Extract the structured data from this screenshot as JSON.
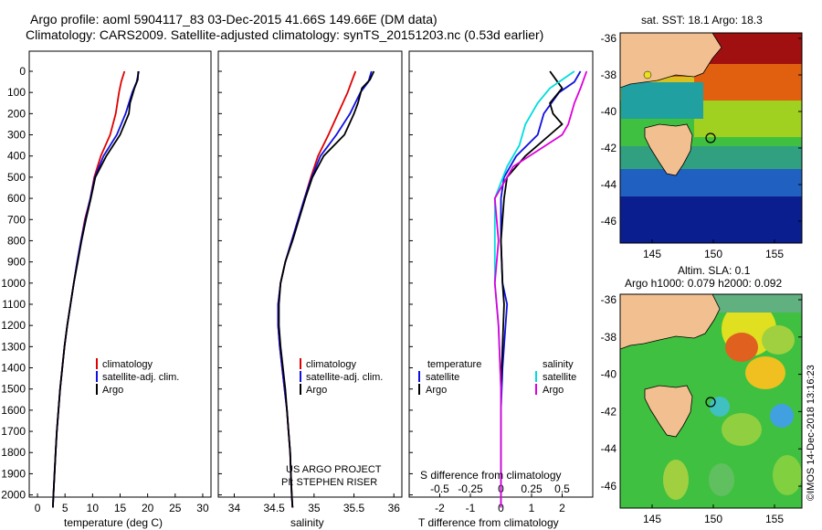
{
  "header": {
    "line1": "Argo profile: aoml 5904117_83 03-Dec-2015 41.66S 149.66E (DM data)",
    "line2": "Climatology: CARS2009. Satellite-adjusted climatology: synTS_20151203.nc (0.53d earlier)"
  },
  "colors": {
    "climatology": "#e00000",
    "satellite": "#1010e0",
    "argo": "#000000",
    "sat_s": "#00dddd",
    "argo_s": "#dd00dd"
  },
  "depth_ticks": [
    "0",
    "100",
    "200",
    "300",
    "400",
    "500",
    "600",
    "700",
    "800",
    "900",
    "1000",
    "1100",
    "1200",
    "1300",
    "1400",
    "1500",
    "1600",
    "1700",
    "1800",
    "1900",
    "2000"
  ],
  "temp_ticks": [
    "0",
    "5",
    "10",
    "15",
    "20",
    "25",
    "30"
  ],
  "sal_ticks": [
    "34",
    "34.5",
    "35",
    "35.5",
    "36"
  ],
  "tdiff_ticks": [
    "-2",
    "-1",
    "0",
    "1",
    "2"
  ],
  "sdiff_ticks": [
    "-0.5",
    "-0.25",
    "0",
    "0.25",
    "0.5"
  ],
  "legend1": {
    "climatology": "climatology",
    "satellite": "satellite-adj. clim.",
    "argo": "Argo"
  },
  "legend3": {
    "t_head": "temperature",
    "s_head": "salinity",
    "satellite": "satellite",
    "argo": "Argo"
  },
  "xlabels": {
    "temp": "temperature (deg C)",
    "sal": "salinity",
    "tdiff": "T difference from climatology",
    "sdiff": "S difference from climatology"
  },
  "credit": {
    "line1": "US ARGO PROJECT",
    "line2": "PI: STEPHEN RISER"
  },
  "maps": {
    "sst_title": "sat. SST: 18.1 Argo: 18.3",
    "sla_title1": "Altim. SLA: 0.1",
    "sla_title2": "Argo h1000: 0.079 h2000: 0.092",
    "lat_ticks": [
      "-36",
      "-38",
      "-40",
      "-42",
      "-44",
      "-46"
    ],
    "lon_ticks": [
      "145",
      "150",
      "155"
    ],
    "stamp": "©IMOS 14-Dec-2018 13:16:23"
  },
  "chart_data": [
    {
      "type": "line",
      "title": "",
      "xlabel": "temperature (deg C)",
      "ylabel": "depth",
      "xlim": [
        -1.5,
        31.5
      ],
      "ylim": [
        2080,
        0
      ],
      "series": [
        {
          "name": "climatology",
          "points": [
            [
              15.8,
              0
            ],
            [
              15.2,
              50
            ],
            [
              14.8,
              100
            ],
            [
              14.2,
              200
            ],
            [
              13.2,
              300
            ],
            [
              11.5,
              400
            ],
            [
              10.3,
              500
            ],
            [
              9.6,
              600
            ],
            [
              8.6,
              700
            ],
            [
              7.9,
              800
            ],
            [
              7.2,
              900
            ],
            [
              6.6,
              1000
            ],
            [
              6.0,
              1100
            ],
            [
              5.4,
              1200
            ],
            [
              4.9,
              1300
            ],
            [
              4.5,
              1400
            ],
            [
              4.1,
              1500
            ],
            [
              3.8,
              1600
            ],
            [
              3.5,
              1700
            ],
            [
              3.3,
              1800
            ],
            [
              3.1,
              1900
            ],
            [
              2.9,
              2000
            ],
            [
              2.8,
              2060
            ]
          ]
        },
        {
          "name": "satellite-adj. clim.",
          "points": [
            [
              18.4,
              0
            ],
            [
              18.0,
              50
            ],
            [
              17.2,
              100
            ],
            [
              16.0,
              200
            ],
            [
              14.4,
              300
            ],
            [
              12.0,
              400
            ],
            [
              10.4,
              500
            ],
            [
              9.6,
              600
            ],
            [
              8.7,
              700
            ],
            [
              7.9,
              800
            ],
            [
              7.2,
              900
            ],
            [
              6.6,
              1000
            ],
            [
              6.0,
              1100
            ],
            [
              5.4,
              1200
            ],
            [
              4.9,
              1300
            ],
            [
              4.5,
              1400
            ],
            [
              4.1,
              1500
            ],
            [
              3.8,
              1600
            ],
            [
              3.5,
              1700
            ],
            [
              3.3,
              1800
            ],
            [
              3.1,
              1900
            ],
            [
              2.9,
              2000
            ],
            [
              2.8,
              2060
            ]
          ]
        },
        {
          "name": "Argo",
          "points": [
            [
              18.3,
              0
            ],
            [
              18.2,
              40
            ],
            [
              17.6,
              80
            ],
            [
              16.8,
              150
            ],
            [
              16.6,
              200
            ],
            [
              15.0,
              300
            ],
            [
              12.5,
              400
            ],
            [
              10.5,
              500
            ],
            [
              9.7,
              600
            ],
            [
              8.8,
              700
            ],
            [
              8.0,
              800
            ],
            [
              7.3,
              900
            ],
            [
              6.6,
              1000
            ],
            [
              6.0,
              1100
            ],
            [
              5.4,
              1200
            ],
            [
              4.9,
              1300
            ],
            [
              4.5,
              1400
            ],
            [
              4.1,
              1500
            ],
            [
              3.8,
              1600
            ],
            [
              3.5,
              1700
            ],
            [
              3.3,
              1800
            ],
            [
              3.1,
              1900
            ],
            [
              2.9,
              2000
            ],
            [
              2.8,
              2060
            ]
          ]
        }
      ]
    },
    {
      "type": "line",
      "title": "",
      "xlabel": "salinity",
      "ylabel": "depth",
      "xlim": [
        33.8,
        36.1
      ],
      "ylim": [
        2080,
        0
      ],
      "series": [
        {
          "name": "climatology",
          "points": [
            [
              35.52,
              0
            ],
            [
              35.47,
              50
            ],
            [
              35.42,
              100
            ],
            [
              35.3,
              200
            ],
            [
              35.18,
              300
            ],
            [
              35.05,
              400
            ],
            [
              34.96,
              500
            ],
            [
              34.88,
              600
            ],
            [
              34.8,
              700
            ],
            [
              34.72,
              800
            ],
            [
              34.64,
              900
            ],
            [
              34.58,
              1000
            ],
            [
              34.55,
              1100
            ],
            [
              34.55,
              1200
            ],
            [
              34.57,
              1300
            ],
            [
              34.6,
              1400
            ],
            [
              34.63,
              1500
            ],
            [
              34.66,
              1600
            ],
            [
              34.68,
              1700
            ],
            [
              34.7,
              1800
            ],
            [
              34.71,
              1900
            ],
            [
              34.72,
              2000
            ],
            [
              34.73,
              2060
            ]
          ]
        },
        {
          "name": "satellite-adj. clim.",
          "points": [
            [
              35.72,
              0
            ],
            [
              35.68,
              50
            ],
            [
              35.58,
              100
            ],
            [
              35.45,
              200
            ],
            [
              35.28,
              300
            ],
            [
              35.08,
              400
            ],
            [
              34.97,
              500
            ],
            [
              34.88,
              600
            ],
            [
              34.8,
              700
            ],
            [
              34.72,
              800
            ],
            [
              34.64,
              900
            ],
            [
              34.58,
              1000
            ],
            [
              34.55,
              1100
            ],
            [
              34.55,
              1200
            ],
            [
              34.57,
              1300
            ],
            [
              34.6,
              1400
            ],
            [
              34.63,
              1500
            ],
            [
              34.66,
              1600
            ],
            [
              34.68,
              1700
            ],
            [
              34.7,
              1800
            ],
            [
              34.71,
              1900
            ],
            [
              34.72,
              2000
            ],
            [
              34.73,
              2060
            ]
          ]
        },
        {
          "name": "Argo",
          "points": [
            [
              35.75,
              0
            ],
            [
              35.7,
              40
            ],
            [
              35.6,
              80
            ],
            [
              35.55,
              150
            ],
            [
              35.5,
              200
            ],
            [
              35.38,
              300
            ],
            [
              35.12,
              400
            ],
            [
              34.98,
              500
            ],
            [
              34.89,
              600
            ],
            [
              34.81,
              700
            ],
            [
              34.73,
              800
            ],
            [
              34.64,
              900
            ],
            [
              34.58,
              1000
            ],
            [
              34.56,
              1100
            ],
            [
              34.56,
              1200
            ],
            [
              34.58,
              1300
            ],
            [
              34.61,
              1400
            ],
            [
              34.64,
              1500
            ],
            [
              34.66,
              1600
            ],
            [
              34.68,
              1700
            ],
            [
              34.7,
              1800
            ],
            [
              34.71,
              1900
            ],
            [
              34.72,
              2000
            ],
            [
              34.73,
              2060
            ]
          ]
        }
      ]
    },
    {
      "type": "line",
      "title": "",
      "xlabel": "T difference from climatology",
      "ylabel": "depth",
      "xlim": [
        -3.0,
        3.0
      ],
      "ylim": [
        2080,
        0
      ],
      "series": [
        {
          "name": "temperature satellite",
          "points": [
            [
              2.6,
              0
            ],
            [
              2.4,
              50
            ],
            [
              1.9,
              100
            ],
            [
              1.4,
              200
            ],
            [
              1.2,
              300
            ],
            [
              0.5,
              400
            ],
            [
              0.1,
              500
            ],
            [
              0.0,
              600
            ],
            [
              0.0,
              800
            ],
            [
              0.05,
              1000
            ],
            [
              0.2,
              1100
            ],
            [
              0.15,
              1200
            ],
            [
              0.05,
              1400
            ],
            [
              0.0,
              1600
            ],
            [
              0.0,
              2060
            ]
          ]
        },
        {
          "name": "temperature Argo",
          "points": [
            [
              1.6,
              0
            ],
            [
              1.8,
              40
            ],
            [
              2.0,
              80
            ],
            [
              1.6,
              150
            ],
            [
              1.7,
              200
            ],
            [
              2.0,
              250
            ],
            [
              1.6,
              300
            ],
            [
              0.8,
              400
            ],
            [
              0.2,
              500
            ],
            [
              0.1,
              600
            ],
            [
              0.05,
              700
            ],
            [
              0.0,
              800
            ],
            [
              0.05,
              1000
            ],
            [
              0.1,
              1100
            ],
            [
              0.05,
              1300
            ],
            [
              0.0,
              1500
            ],
            [
              0.0,
              2060
            ]
          ]
        },
        {
          "name": "salinity satellite",
          "points": [
            [
              0.6,
              0
            ],
            [
              0.4,
              80
            ],
            [
              0.3,
              150
            ],
            [
              0.2,
              250
            ],
            [
              0.15,
              350
            ],
            [
              0.05,
              450
            ],
            [
              -0.05,
              600
            ],
            [
              -0.05,
              1000
            ],
            [
              -0.02,
              1200
            ],
            [
              0.0,
              1500
            ],
            [
              0.0,
              2060
            ]
          ]
        },
        {
          "name": "salinity Argo",
          "points": [
            [
              0.7,
              0
            ],
            [
              0.65,
              80
            ],
            [
              0.6,
              150
            ],
            [
              0.55,
              250
            ],
            [
              0.5,
              300
            ],
            [
              0.1,
              450
            ],
            [
              -0.05,
              600
            ],
            [
              -0.02,
              800
            ],
            [
              -0.05,
              1000
            ],
            [
              -0.02,
              1200
            ],
            [
              0.0,
              1500
            ],
            [
              0.0,
              2060
            ]
          ]
        }
      ]
    }
  ]
}
